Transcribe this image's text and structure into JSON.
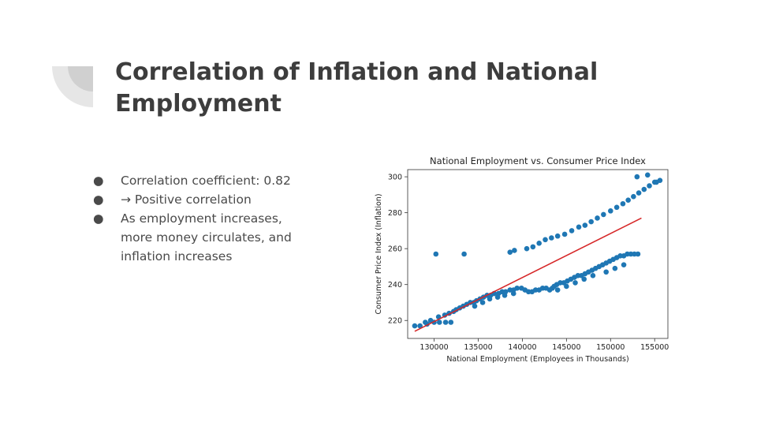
{
  "slide": {
    "title": "Correlation of Inflation and National Employment",
    "bullets": [
      "Correlation coefficient: 0.82",
      "→ Positive correlation",
      "As employment increases, more money circulates, and inflation increases"
    ],
    "colors": {
      "title": "#3d3d3d",
      "text": "#4a4a4a",
      "decor_light": "#e6e6e6",
      "decor_dark": "#d0d0d0"
    }
  },
  "chart_data": {
    "type": "scatter",
    "title": "National Employment vs. Consumer Price Index",
    "xlabel": "National Employment (Employees in Thousands)",
    "ylabel": "Consumer Price Index (Inflation)",
    "xlim": [
      127000,
      156500
    ],
    "ylim": [
      210,
      304
    ],
    "xticks": [
      130000,
      135000,
      140000,
      145000,
      150000,
      155000
    ],
    "yticks": [
      220,
      240,
      260,
      280,
      300
    ],
    "grid": false,
    "point_color": "#1f77b4",
    "line_color": "#d62728",
    "fit_line": {
      "x": [
        127800,
        153500
      ],
      "y": [
        214,
        277
      ]
    },
    "points": [
      [
        127800,
        217
      ],
      [
        128400,
        217
      ],
      [
        129000,
        219
      ],
      [
        129200,
        218
      ],
      [
        129600,
        220
      ],
      [
        130000,
        219
      ],
      [
        130500,
        222
      ],
      [
        130600,
        219
      ],
      [
        131200,
        223
      ],
      [
        131300,
        219
      ],
      [
        131700,
        224
      ],
      [
        131900,
        219
      ],
      [
        132200,
        225
      ],
      [
        132500,
        226
      ],
      [
        132900,
        227
      ],
      [
        133300,
        228
      ],
      [
        133700,
        229
      ],
      [
        134100,
        230
      ],
      [
        134500,
        230
      ],
      [
        134800,
        231
      ],
      [
        135200,
        232
      ],
      [
        135600,
        233
      ],
      [
        136000,
        234
      ],
      [
        136400,
        234
      ],
      [
        136800,
        235
      ],
      [
        137300,
        235
      ],
      [
        137700,
        236
      ],
      [
        138100,
        236
      ],
      [
        138600,
        237
      ],
      [
        139000,
        237
      ],
      [
        139400,
        238
      ],
      [
        139900,
        238
      ],
      [
        140300,
        237
      ],
      [
        140700,
        236
      ],
      [
        141100,
        236
      ],
      [
        141500,
        237
      ],
      [
        141900,
        237
      ],
      [
        142300,
        238
      ],
      [
        142700,
        238
      ],
      [
        143100,
        237
      ],
      [
        143400,
        238
      ],
      [
        143600,
        239
      ],
      [
        143900,
        240
      ],
      [
        144300,
        241
      ],
      [
        144700,
        241
      ],
      [
        145100,
        242
      ],
      [
        145500,
        243
      ],
      [
        145900,
        244
      ],
      [
        146300,
        245
      ],
      [
        146700,
        245
      ],
      [
        147100,
        246
      ],
      [
        147500,
        247
      ],
      [
        147900,
        248
      ],
      [
        148300,
        249
      ],
      [
        148700,
        250
      ],
      [
        149100,
        251
      ],
      [
        149500,
        252
      ],
      [
        149900,
        253
      ],
      [
        150300,
        254
      ],
      [
        150700,
        255
      ],
      [
        151100,
        256
      ],
      [
        151500,
        256
      ],
      [
        151900,
        257
      ],
      [
        152300,
        257
      ],
      [
        152700,
        257
      ],
      [
        153100,
        257
      ],
      [
        134600,
        228
      ],
      [
        135500,
        230
      ],
      [
        136300,
        232
      ],
      [
        137200,
        233
      ],
      [
        138000,
        234
      ],
      [
        139000,
        235
      ],
      [
        144000,
        237
      ],
      [
        145000,
        239
      ],
      [
        146000,
        241
      ],
      [
        147000,
        243
      ],
      [
        148000,
        245
      ],
      [
        149500,
        247
      ],
      [
        150500,
        249
      ],
      [
        151500,
        251
      ],
      [
        130200,
        257
      ],
      [
        133400,
        257
      ],
      [
        138600,
        258
      ],
      [
        139100,
        259
      ],
      [
        140500,
        260
      ],
      [
        141200,
        261
      ],
      [
        141900,
        263
      ],
      [
        142600,
        265
      ],
      [
        143300,
        266
      ],
      [
        144000,
        267
      ],
      [
        144800,
        268
      ],
      [
        145600,
        270
      ],
      [
        146400,
        272
      ],
      [
        147100,
        273
      ],
      [
        147800,
        275
      ],
      [
        148500,
        277
      ],
      [
        149200,
        279
      ],
      [
        150000,
        281
      ],
      [
        150700,
        283
      ],
      [
        151400,
        285
      ],
      [
        152000,
        287
      ],
      [
        152600,
        289
      ],
      [
        153200,
        291
      ],
      [
        153800,
        293
      ],
      [
        154400,
        295
      ],
      [
        155000,
        297
      ],
      [
        155600,
        298
      ],
      [
        153000,
        300
      ],
      [
        154200,
        301
      ],
      [
        155200,
        297
      ]
    ]
  }
}
